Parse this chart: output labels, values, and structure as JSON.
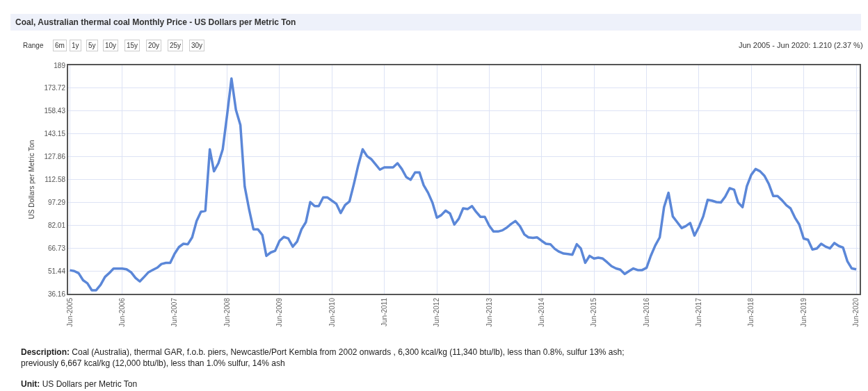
{
  "chart_data": {
    "type": "line",
    "title": "Coal, Australian thermal coal Monthly Price - US Dollars per Metric Ton",
    "ylabel": "US Dollars per Metric Ton",
    "annotations": [
      "Range",
      "6m",
      "1y",
      "5y",
      "10y",
      "15y",
      "20y",
      "25y",
      "30y",
      "Jun 2005 - Jun 2020: 1.210 (2.37 %)",
      "Description: Coal (Australia), thermal GAR, f.o.b. piers, Newcastle/Port Kembla from 2002 onwards , 6,300 kcal/kg (11,340 btu/lb), less than 0.8%, sulfur 13% ash; previously 6,667 kcal/kg (12,000 btu/lb), less than 1.0% sulfur, 14% ash",
      "Unit: US Dollars per Metric Ton"
    ],
    "x": [
      "2005-06",
      "2005-07",
      "2005-08",
      "2005-09",
      "2005-10",
      "2005-11",
      "2005-12",
      "2006-01",
      "2006-02",
      "2006-03",
      "2006-04",
      "2006-05",
      "2006-06",
      "2006-07",
      "2006-08",
      "2006-09",
      "2006-10",
      "2006-11",
      "2006-12",
      "2007-01",
      "2007-02",
      "2007-03",
      "2007-04",
      "2007-05",
      "2007-06",
      "2007-07",
      "2007-08",
      "2007-09",
      "2007-10",
      "2007-11",
      "2007-12",
      "2008-01",
      "2008-02",
      "2008-03",
      "2008-04",
      "2008-05",
      "2008-06",
      "2008-07",
      "2008-08",
      "2008-09",
      "2008-10",
      "2008-11",
      "2008-12",
      "2009-01",
      "2009-02",
      "2009-03",
      "2009-04",
      "2009-05",
      "2009-06",
      "2009-07",
      "2009-08",
      "2009-09",
      "2009-10",
      "2009-11",
      "2009-12",
      "2010-01",
      "2010-02",
      "2010-03",
      "2010-04",
      "2010-05",
      "2010-06",
      "2010-07",
      "2010-08",
      "2010-09",
      "2010-10",
      "2010-11",
      "2010-12",
      "2011-01",
      "2011-02",
      "2011-03",
      "2011-04",
      "2011-05",
      "2011-06",
      "2011-07",
      "2011-08",
      "2011-09",
      "2011-10",
      "2011-11",
      "2011-12",
      "2012-01",
      "2012-02",
      "2012-03",
      "2012-04",
      "2012-05",
      "2012-06",
      "2012-07",
      "2012-08",
      "2012-09",
      "2012-10",
      "2012-11",
      "2012-12",
      "2013-01",
      "2013-02",
      "2013-03",
      "2013-04",
      "2013-05",
      "2013-06",
      "2013-07",
      "2013-08",
      "2013-09",
      "2013-10",
      "2013-11",
      "2013-12",
      "2014-01",
      "2014-02",
      "2014-03",
      "2014-04",
      "2014-05",
      "2014-06",
      "2014-07",
      "2014-08",
      "2014-09",
      "2014-10",
      "2014-11",
      "2014-12",
      "2015-01",
      "2015-02",
      "2015-03",
      "2015-04",
      "2015-05",
      "2015-06",
      "2015-07",
      "2015-08",
      "2015-09",
      "2015-10",
      "2015-11",
      "2015-12",
      "2016-01",
      "2016-02",
      "2016-03",
      "2016-04",
      "2016-05",
      "2016-06",
      "2016-07",
      "2016-08",
      "2016-09",
      "2016-10",
      "2016-11",
      "2016-12",
      "2017-01",
      "2017-02",
      "2017-03",
      "2017-04",
      "2017-05",
      "2017-06",
      "2017-07",
      "2017-08",
      "2017-09",
      "2017-10",
      "2017-11",
      "2017-12",
      "2018-01",
      "2018-02",
      "2018-03",
      "2018-04",
      "2018-05",
      "2018-06",
      "2018-07",
      "2018-08",
      "2018-09",
      "2018-10",
      "2018-11",
      "2018-12",
      "2019-01",
      "2019-02",
      "2019-03",
      "2019-04",
      "2019-05",
      "2019-06",
      "2019-07",
      "2019-08",
      "2019-09",
      "2019-10",
      "2019-11",
      "2019-12",
      "2020-01",
      "2020-02",
      "2020-03",
      "2020-04",
      "2020-05",
      "2020-06"
    ],
    "series": [
      {
        "color": "#5b87d8",
        "values": [
          51.9,
          51.4,
          49.9,
          45.2,
          43.2,
          38.5,
          38.5,
          42.1,
          47.5,
          49.9,
          53.0,
          53.0,
          53.0,
          52.5,
          50.6,
          46.8,
          44.4,
          47.5,
          50.6,
          52.2,
          53.7,
          56.1,
          56.8,
          56.8,
          63.0,
          67.4,
          69.6,
          69.3,
          73.9,
          84.8,
          91.0,
          91.7,
          132.8,
          118.1,
          123.5,
          132.8,
          156.1,
          180.2,
          159.2,
          149.1,
          108.0,
          92.5,
          79.3,
          79.3,
          75.5,
          61.5,
          63.8,
          64.9,
          71.6,
          74.2,
          73.1,
          67.7,
          71.1,
          79.3,
          84.0,
          97.5,
          94.8,
          94.8,
          100.6,
          100.6,
          98.4,
          96.4,
          90.2,
          95.6,
          97.9,
          109.6,
          122.0,
          132.8,
          128.2,
          126.3,
          122.7,
          119.2,
          120.7,
          120.7,
          120.7,
          123.5,
          119.6,
          114.2,
          112.4,
          117.3,
          117.3,
          108.8,
          103.7,
          97.2,
          87.1,
          88.7,
          91.8,
          89.8,
          82.5,
          86.4,
          93.3,
          92.8,
          94.8,
          91.0,
          87.6,
          87.6,
          81.7,
          77.8,
          77.8,
          78.6,
          80.4,
          82.9,
          84.8,
          81.4,
          75.8,
          73.9,
          73.6,
          73.9,
          71.6,
          69.6,
          69.3,
          66.2,
          64.3,
          63.1,
          62.8,
          62.3,
          69.3,
          66.5,
          56.9,
          61.5,
          59.7,
          60.3,
          59.7,
          57.2,
          54.6,
          53.1,
          52.3,
          49.4,
          51.4,
          53.1,
          52.0,
          52.0,
          53.5,
          61.6,
          68.5,
          73.9,
          94.1,
          103.7,
          87.9,
          84.0,
          80.1,
          81.4,
          83.5,
          75.1,
          80.9,
          87.9,
          99.0,
          98.4,
          97.5,
          97.2,
          101.1,
          106.8,
          105.8,
          97.2,
          94.1,
          108.1,
          115.8,
          119.6,
          118.1,
          115.0,
          109.6,
          101.5,
          101.5,
          98.7,
          95.3,
          93.3,
          87.1,
          82.5,
          73.1,
          72.3,
          65.8,
          66.5,
          69.6,
          67.7,
          66.5,
          70.1,
          68.1,
          67.1,
          57.8,
          53.1,
          52.5
        ]
      }
    ],
    "xlim": [
      "2005-05-20",
      "2020-06-25"
    ],
    "xticks": [
      {
        "value": "2005-06",
        "label": "Jun-2005"
      },
      {
        "value": "2006-06",
        "label": "Jun-2006"
      },
      {
        "value": "2007-06",
        "label": "Jun-2007"
      },
      {
        "value": "2008-06",
        "label": "Jun-2008"
      },
      {
        "value": "2009-06",
        "label": "Jun-2009"
      },
      {
        "value": "2010-06",
        "label": "Jun-2010"
      },
      {
        "value": "2011-06",
        "label": "Jun-2011"
      },
      {
        "value": "2012-06",
        "label": "Jun-2012"
      },
      {
        "value": "2013-06",
        "label": "Jun-2013"
      },
      {
        "value": "2014-06",
        "label": "Jun-2014"
      },
      {
        "value": "2015-06",
        "label": "Jun-2015"
      },
      {
        "value": "2016-06",
        "label": "Jun-2016"
      },
      {
        "value": "2017-06",
        "label": "Jun-2017"
      },
      {
        "value": "2018-06",
        "label": "Jun-2018"
      },
      {
        "value": "2019-06",
        "label": "Jun-2019"
      },
      {
        "value": "2020-06",
        "label": "Jun-2020"
      }
    ],
    "ylim": [
      36.16,
      189
    ],
    "yticks": [
      36.16,
      51.44,
      66.73,
      82.01,
      97.29,
      112.58,
      127.86,
      143.15,
      158.43,
      173.72,
      189
    ],
    "grid": true,
    "marker": "none",
    "line_style": "solid"
  }
}
